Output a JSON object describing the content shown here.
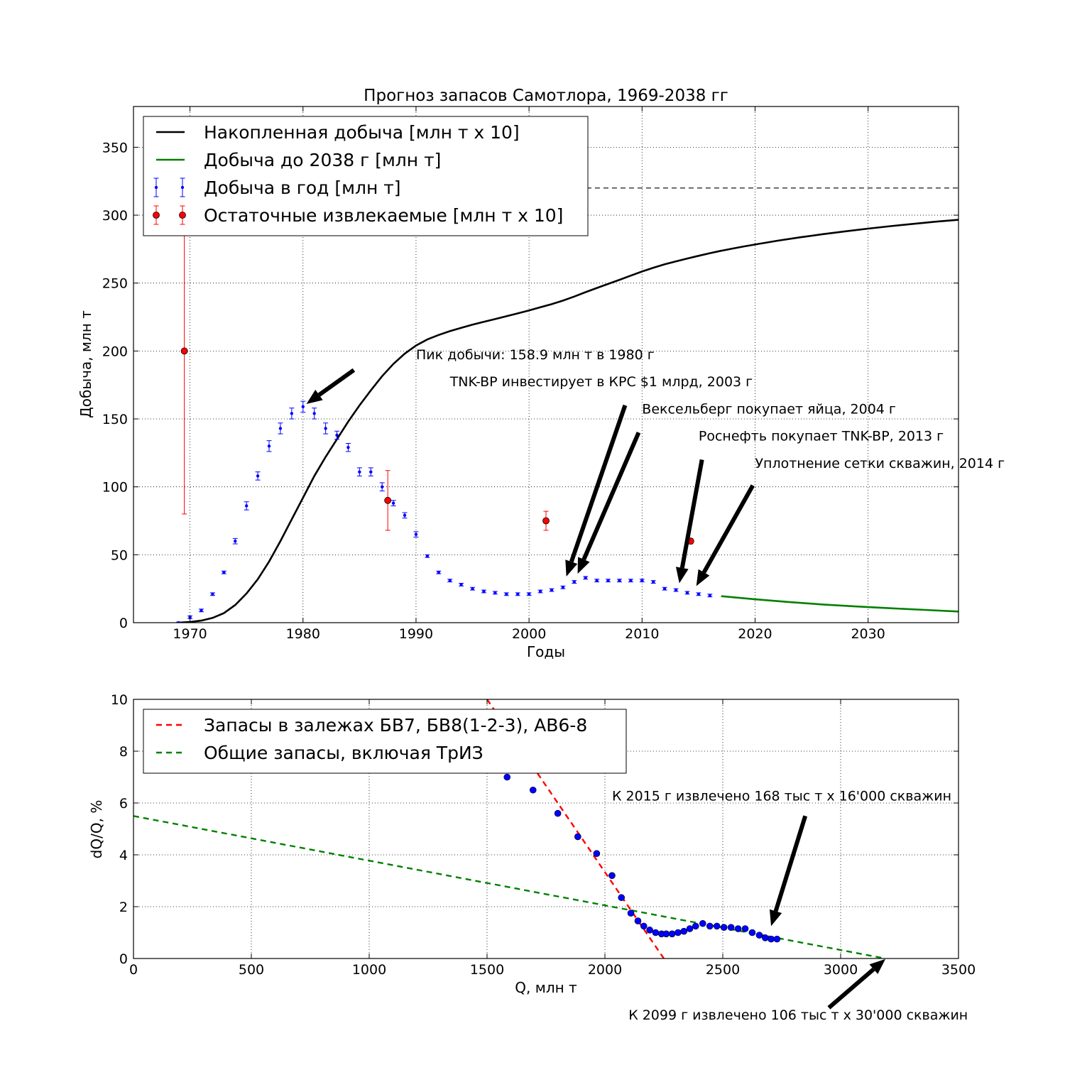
{
  "chart_data": [
    {
      "type": "line",
      "title": "Прогноз запасов Самотлора, 1969-2038 гг",
      "xlabel": "Годы",
      "ylabel": "Добыча, млн т",
      "xlim": [
        1965,
        2038
      ],
      "ylim": [
        0,
        380
      ],
      "xticks": [
        1970,
        1980,
        1990,
        2000,
        2010,
        2020,
        2030
      ],
      "xtick_labels": [
        "1970",
        "1980",
        "1990",
        "2000",
        "2010",
        "2020",
        "2030"
      ],
      "yticks": [
        0,
        50,
        100,
        150,
        200,
        250,
        300,
        350
      ],
      "ytick_labels": [
        "0",
        "50",
        "100",
        "150",
        "200",
        "250",
        "300",
        "350"
      ],
      "grid": true,
      "legend_position": "upper-left",
      "reference_line": {
        "y": 320,
        "x_from": 1990,
        "x_to": 2038,
        "style": "dashed"
      },
      "series": [
        {
          "name": "Накопленная добыча [млн т х 10]",
          "style": "line",
          "color": "#000000",
          "x": [
            1969,
            1970,
            1971,
            1972,
            1973,
            1974,
            1975,
            1976,
            1977,
            1978,
            1979,
            1980,
            1981,
            1982,
            1983,
            1984,
            1985,
            1986,
            1987,
            1988,
            1989,
            1990,
            1991,
            1992,
            1993,
            1994,
            1995,
            1996,
            1997,
            1998,
            1999,
            2000,
            2001,
            2002,
            2003,
            2004,
            2005,
            2006,
            2007,
            2008,
            2009,
            2010,
            2011,
            2012,
            2013,
            2014,
            2015,
            2016,
            2017,
            2018,
            2019,
            2020,
            2022,
            2024,
            2026,
            2028,
            2030,
            2032,
            2034,
            2036,
            2038
          ],
          "y": [
            0,
            0.5,
            1.5,
            3.5,
            7,
            13,
            21.5,
            32,
            45,
            60,
            76,
            92,
            108,
            122,
            135,
            148,
            160,
            171,
            181.5,
            190.5,
            198,
            204,
            208.5,
            211.8,
            214.6,
            217.1,
            219.4,
            221.5,
            223.5,
            225.6,
            227.7,
            229.9,
            232.2,
            234.5,
            237.1,
            240.1,
            243.3,
            246.4,
            249.4,
            252.4,
            255.5,
            258.5,
            261.3,
            263.8,
            266.0,
            268.1,
            270.1,
            272.0,
            273.8,
            275.4,
            277.0,
            278.4,
            281.2,
            283.7,
            286.0,
            288.1,
            290.1,
            291.9,
            293.6,
            295.2,
            296.6
          ]
        },
        {
          "name": "Добыча до 2038 г [млн т]",
          "style": "line",
          "color": "#008000",
          "x": [
            2017,
            2020,
            2023,
            2026,
            2029,
            2032,
            2035,
            2038
          ],
          "y": [
            19.5,
            17.2,
            15.2,
            13.4,
            11.9,
            10.6,
            9.4,
            8.2
          ]
        },
        {
          "name": "Добыча в год [млн т]",
          "style": "points-errorbar",
          "color": "#0000ff",
          "x": [
            1969,
            1970,
            1971,
            1972,
            1973,
            1974,
            1975,
            1976,
            1977,
            1978,
            1979,
            1980,
            1981,
            1982,
            1983,
            1984,
            1985,
            1986,
            1987,
            1988,
            1989,
            1990,
            1991,
            1992,
            1993,
            1994,
            1995,
            1996,
            1997,
            1998,
            1999,
            2000,
            2001,
            2002,
            2003,
            2004,
            2005,
            2006,
            2007,
            2008,
            2009,
            2010,
            2011,
            2012,
            2013,
            2014,
            2015,
            2016
          ],
          "y": [
            0,
            4,
            9,
            21,
            37,
            60,
            86,
            108,
            130,
            143,
            154,
            159,
            154,
            143,
            138,
            129,
            111,
            111,
            100,
            88,
            79,
            65,
            49,
            37,
            31,
            28,
            25,
            23,
            22,
            21,
            21,
            21,
            23,
            24,
            26,
            30,
            33,
            31,
            31,
            31,
            31,
            31,
            30,
            25,
            24,
            22,
            21,
            20
          ],
          "yerr": [
            0.5,
            1,
            1,
            1,
            1,
            2,
            3,
            3,
            4,
            4,
            4,
            4,
            4,
            4,
            3,
            3,
            3,
            3,
            3,
            2,
            2,
            2,
            1,
            1,
            1,
            1,
            1,
            1,
            1,
            1,
            1,
            1,
            1,
            1,
            1,
            1,
            1,
            1,
            1,
            1,
            1,
            1,
            1,
            1,
            1,
            1,
            1,
            1
          ]
        },
        {
          "name": "Остаточные извлекаемые [млн т х 10]",
          "style": "points-errorbar",
          "color": "#ff0000",
          "x": [
            1969.5,
            1987.5,
            2001.5,
            2014.3
          ],
          "y": [
            200,
            90,
            75,
            60
          ],
          "yerr_low": [
            120,
            22,
            7,
            2
          ],
          "yerr_high": [
            120,
            22,
            7,
            2
          ]
        }
      ],
      "annotations": [
        {
          "text": "Пик добычи: 158.9 млн т в 1980 г",
          "text_x": 1990,
          "text_y": 194,
          "arrow_from": [
            1984.5,
            186
          ],
          "arrow_to": [
            1980.3,
            161
          ]
        },
        {
          "text": "TNK-BP инвестирует в КРС $1 млрд, 2003 г",
          "text_x": 1993,
          "text_y": 174,
          "arrow_from": [
            2008.5,
            160
          ],
          "arrow_to": [
            2003.3,
            34
          ]
        },
        {
          "text": "Вексельберг покупает яйца, 2004 г",
          "text_x": 2010,
          "text_y": 154,
          "arrow_from": [
            2009.7,
            140
          ],
          "arrow_to": [
            2004.3,
            36
          ]
        },
        {
          "text": "Роснефть покупает TNK-BP, 2013 г",
          "text_x": 2015,
          "text_y": 134,
          "arrow_from": [
            2015.3,
            120
          ],
          "arrow_to": [
            2013.3,
            29
          ]
        },
        {
          "text": "Уплотнение сетки скважин, 2014 г",
          "text_x": 2020,
          "text_y": 114,
          "arrow_from": [
            2019.8,
            101
          ],
          "arrow_to": [
            2014.8,
            27
          ]
        }
      ]
    },
    {
      "type": "scatter",
      "title": "",
      "xlabel": "Q, млн т",
      "ylabel": "dQ/Q, %",
      "xlim": [
        0,
        3500
      ],
      "ylim": [
        0,
        10
      ],
      "xticks": [
        0,
        500,
        1000,
        1500,
        2000,
        2500,
        3000,
        3500
      ],
      "xtick_labels": [
        "0",
        "500",
        "1000",
        "1500",
        "2000",
        "2500",
        "3000",
        "3500"
      ],
      "yticks": [
        0,
        2,
        4,
        6,
        8,
        10
      ],
      "ytick_labels": [
        "0",
        "2",
        "4",
        "6",
        "8",
        "10"
      ],
      "grid": true,
      "legend_position": "upper-left",
      "series": [
        {
          "name": "Запасы в залежах БВ7, БВ8(1-2-3), АВ6-8",
          "style": "dashed-line",
          "color": "#ff0000",
          "x": [
            1500,
            2250
          ],
          "y": [
            10,
            0
          ]
        },
        {
          "name": "Общие запасы, включая ТрИЗ",
          "style": "dashed-line",
          "color": "#008000",
          "x": [
            0,
            3190
          ],
          "y": [
            5.5,
            0
          ]
        },
        {
          "name": "",
          "style": "points",
          "color": "#0000ff",
          "x": [
            1585,
            1695,
            1800,
            1885,
            1965,
            2030,
            2070,
            2110,
            2140,
            2165,
            2190,
            2215,
            2240,
            2260,
            2285,
            2310,
            2335,
            2360,
            2385,
            2415,
            2445,
            2475,
            2505,
            2535,
            2565,
            2595,
            2625,
            2655,
            2680,
            2705,
            2730
          ],
          "y": [
            7.0,
            6.5,
            5.6,
            4.7,
            4.05,
            3.2,
            2.35,
            1.75,
            1.45,
            1.25,
            1.1,
            1.0,
            0.95,
            0.95,
            0.95,
            1.0,
            1.05,
            1.15,
            1.25,
            1.35,
            1.25,
            1.25,
            1.2,
            1.2,
            1.15,
            1.15,
            1.0,
            0.9,
            0.8,
            0.75,
            0.75
          ]
        }
      ],
      "annotations": [
        {
          "text": "К 2015 г извлечено 168 тыс т х 16'000 скважин",
          "text_x": 2030,
          "text_y": 6.1,
          "arrow_from": [
            2850,
            5.5
          ],
          "arrow_to": [
            2705,
            1.25
          ]
        },
        {
          "text": "К 2099 г извлечено 106 тыс т х 30'000 скважин",
          "text_x": 2100,
          "text_y": -2.35,
          "arrow_from": [
            2950,
            -1.9
          ],
          "arrow_to": [
            3190,
            -0.02
          ]
        }
      ]
    }
  ]
}
